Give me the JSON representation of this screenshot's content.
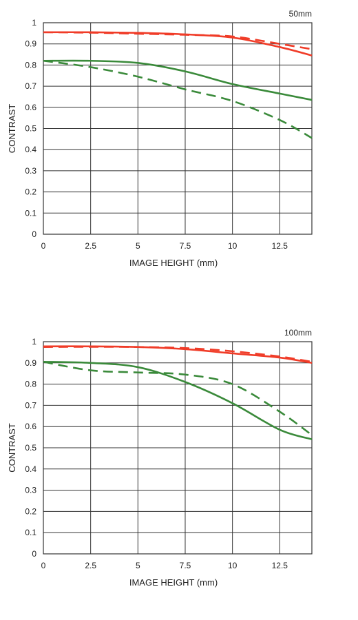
{
  "chart_data": [
    {
      "type": "line",
      "title": "50mm",
      "xlabel": "IMAGE HEIGHT (mm)",
      "ylabel": "CONTRAST",
      "xlim": [
        0,
        14.2
      ],
      "ylim": [
        0,
        1
      ],
      "xticks": [
        "0",
        "2.5",
        "5",
        "7.5",
        "10",
        "12.5"
      ],
      "xtick_values": [
        0,
        2.5,
        5,
        7.5,
        10,
        12.5
      ],
      "yticks": [
        "0",
        "0.1",
        "0.2",
        "0.3",
        "0.4",
        "0.5",
        "0.6",
        "0.7",
        "0.8",
        "0.9",
        "1"
      ],
      "grid": true,
      "series": [
        {
          "color": "#f03c28",
          "dash": false,
          "x": [
            0,
            2.5,
            5,
            7.5,
            10,
            12.5,
            14.2
          ],
          "y": [
            0.955,
            0.955,
            0.952,
            0.945,
            0.93,
            0.885,
            0.845
          ]
        },
        {
          "color": "#f03c28",
          "dash": true,
          "x": [
            0,
            2.5,
            5,
            7.5,
            10,
            12.5,
            14.2
          ],
          "y": [
            0.955,
            0.953,
            0.948,
            0.943,
            0.935,
            0.9,
            0.875
          ]
        },
        {
          "color": "#3a8a3a",
          "dash": false,
          "x": [
            0,
            2.5,
            5,
            7.5,
            10,
            12.5,
            14.2
          ],
          "y": [
            0.82,
            0.82,
            0.81,
            0.77,
            0.71,
            0.665,
            0.635
          ]
        },
        {
          "color": "#3a8a3a",
          "dash": true,
          "x": [
            0,
            2.5,
            5,
            7.5,
            10,
            12.5,
            14.2
          ],
          "y": [
            0.82,
            0.79,
            0.745,
            0.685,
            0.63,
            0.54,
            0.455
          ]
        }
      ]
    },
    {
      "type": "line",
      "title": "100mm",
      "xlabel": "IMAGE HEIGHT (mm)",
      "ylabel": "CONTRAST",
      "xlim": [
        0,
        14.2
      ],
      "ylim": [
        0,
        1
      ],
      "xticks": [
        "0",
        "2.5",
        "5",
        "7.5",
        "10",
        "12.5"
      ],
      "xtick_values": [
        0,
        2.5,
        5,
        7.5,
        10,
        12.5
      ],
      "yticks": [
        "0",
        "0.1",
        "0.2",
        "0.3",
        "0.4",
        "0.5",
        "0.6",
        "0.7",
        "0.8",
        "0.9",
        "1"
      ],
      "grid": true,
      "series": [
        {
          "color": "#f03c28",
          "dash": false,
          "x": [
            0,
            2.5,
            5,
            7.5,
            10,
            12.5,
            14.2
          ],
          "y": [
            0.978,
            0.978,
            0.975,
            0.965,
            0.945,
            0.925,
            0.9
          ]
        },
        {
          "color": "#f03c28",
          "dash": true,
          "x": [
            0,
            2.5,
            5,
            7.5,
            10,
            12.5,
            14.2
          ],
          "y": [
            0.975,
            0.976,
            0.975,
            0.97,
            0.955,
            0.93,
            0.905
          ]
        },
        {
          "color": "#3a8a3a",
          "dash": false,
          "x": [
            0,
            2.5,
            5,
            7.5,
            10,
            12.5,
            14.2
          ],
          "y": [
            0.905,
            0.9,
            0.88,
            0.81,
            0.71,
            0.585,
            0.54
          ]
        },
        {
          "color": "#3a8a3a",
          "dash": true,
          "x": [
            0,
            2.5,
            5,
            7.5,
            10,
            12.5,
            14.2
          ],
          "y": [
            0.905,
            0.865,
            0.855,
            0.845,
            0.8,
            0.67,
            0.56
          ]
        }
      ]
    }
  ]
}
